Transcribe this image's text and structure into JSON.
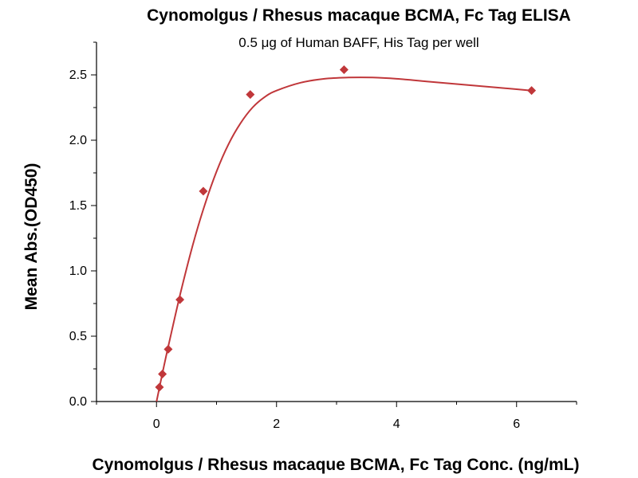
{
  "chart_data": {
    "type": "scatter",
    "title": "Cynomolgus / Rhesus macaque BCMA, Fc Tag ELISA",
    "subtitle": "0.5 μg of Human BAFF, His Tag per well",
    "xlabel": "Cynomolgus / Rhesus macaque BCMA, Fc Tag Conc. (ng/mL)",
    "ylabel": "Mean Abs.(OD450)",
    "xlim": [
      -1,
      7
    ],
    "ylim": [
      0.0,
      2.75
    ],
    "x_ticks": [
      0,
      2,
      4,
      6
    ],
    "x_tick_labels": [
      "0",
      "2",
      "4",
      "6"
    ],
    "y_ticks": [
      0.0,
      0.5,
      1.0,
      1.5,
      2.0,
      2.5
    ],
    "y_tick_labels": [
      "0.0",
      "0.5",
      "1.0",
      "1.5",
      "2.0",
      "2.5"
    ],
    "grid": false,
    "series": [
      {
        "marker": "diamond",
        "color": "#c0373a",
        "points": [
          {
            "x": 0.049,
            "y": 0.11
          },
          {
            "x": 0.098,
            "y": 0.21
          },
          {
            "x": 0.195,
            "y": 0.4
          },
          {
            "x": 0.39,
            "y": 0.78
          },
          {
            "x": 0.78,
            "y": 1.61
          },
          {
            "x": 1.5625,
            "y": 2.35
          },
          {
            "x": 3.125,
            "y": 2.54
          },
          {
            "x": 6.25,
            "y": 2.38
          }
        ]
      }
    ],
    "fit_curve": {
      "color": "#c0373a",
      "points": [
        {
          "x": 0.0,
          "y": 0.0
        },
        {
          "x": 0.1,
          "y": 0.22
        },
        {
          "x": 0.2,
          "y": 0.43
        },
        {
          "x": 0.4,
          "y": 0.83
        },
        {
          "x": 0.6,
          "y": 1.19
        },
        {
          "x": 0.8,
          "y": 1.5
        },
        {
          "x": 1.0,
          "y": 1.76
        },
        {
          "x": 1.2,
          "y": 1.97
        },
        {
          "x": 1.4,
          "y": 2.13
        },
        {
          "x": 1.6,
          "y": 2.25
        },
        {
          "x": 1.8,
          "y": 2.33
        },
        {
          "x": 2.0,
          "y": 2.38
        },
        {
          "x": 2.4,
          "y": 2.44
        },
        {
          "x": 2.8,
          "y": 2.47
        },
        {
          "x": 3.2,
          "y": 2.48
        },
        {
          "x": 3.6,
          "y": 2.48
        },
        {
          "x": 4.0,
          "y": 2.47
        },
        {
          "x": 4.5,
          "y": 2.45
        },
        {
          "x": 5.0,
          "y": 2.43
        },
        {
          "x": 5.5,
          "y": 2.41
        },
        {
          "x": 6.0,
          "y": 2.39
        },
        {
          "x": 6.25,
          "y": 2.38
        }
      ]
    }
  }
}
